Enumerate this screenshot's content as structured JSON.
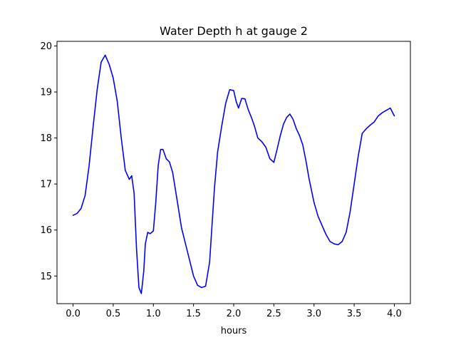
{
  "chart_data": {
    "type": "line",
    "title": "Water Depth h at gauge 2",
    "xlabel": "hours",
    "ylabel": "",
    "xlim": [
      -0.2,
      4.2
    ],
    "ylim": [
      14.4,
      20.1
    ],
    "x_ticks": [
      0.0,
      0.5,
      1.0,
      1.5,
      2.0,
      2.5,
      3.0,
      3.5,
      4.0
    ],
    "x_tick_labels": [
      "0.0",
      "0.5",
      "1.0",
      "1.5",
      "2.0",
      "2.5",
      "3.0",
      "3.5",
      "4.0"
    ],
    "y_ticks": [
      15,
      16,
      17,
      18,
      19,
      20
    ],
    "y_tick_labels": [
      "15",
      "16",
      "17",
      "18",
      "19",
      "20"
    ],
    "grid": false,
    "legend": "none",
    "series": [
      {
        "color": "#0000ff",
        "x": [
          0.0,
          0.05,
          0.1,
          0.15,
          0.2,
          0.25,
          0.3,
          0.35,
          0.4,
          0.45,
          0.5,
          0.55,
          0.6,
          0.65,
          0.7,
          0.73,
          0.76,
          0.79,
          0.82,
          0.85,
          0.88,
          0.9,
          0.93,
          0.96,
          1.0,
          1.03,
          1.06,
          1.09,
          1.12,
          1.16,
          1.2,
          1.24,
          1.3,
          1.35,
          1.4,
          1.5,
          1.55,
          1.6,
          1.65,
          1.7,
          1.73,
          1.76,
          1.8,
          1.85,
          1.9,
          1.95,
          2.0,
          2.03,
          2.06,
          2.1,
          2.14,
          2.18,
          2.22,
          2.26,
          2.3,
          2.35,
          2.4,
          2.45,
          2.5,
          2.54,
          2.58,
          2.62,
          2.66,
          2.7,
          2.74,
          2.78,
          2.82,
          2.86,
          2.9,
          2.94,
          3.0,
          3.05,
          3.1,
          3.15,
          3.2,
          3.25,
          3.3,
          3.35,
          3.4,
          3.45,
          3.5,
          3.55,
          3.6,
          3.65,
          3.7,
          3.75,
          3.8,
          3.85,
          3.9,
          3.95,
          4.0
        ],
        "values": [
          16.32,
          16.36,
          16.47,
          16.75,
          17.4,
          18.25,
          19.05,
          19.65,
          19.8,
          19.6,
          19.3,
          18.8,
          18.0,
          17.3,
          17.1,
          17.18,
          16.8,
          15.6,
          14.75,
          14.62,
          15.1,
          15.7,
          15.95,
          15.92,
          15.98,
          16.6,
          17.4,
          17.75,
          17.75,
          17.55,
          17.48,
          17.25,
          16.6,
          16.05,
          15.7,
          15.0,
          14.8,
          14.75,
          14.78,
          15.3,
          16.1,
          16.9,
          17.7,
          18.25,
          18.75,
          19.05,
          19.03,
          18.8,
          18.65,
          18.86,
          18.85,
          18.62,
          18.45,
          18.25,
          18.0,
          17.92,
          17.8,
          17.55,
          17.47,
          17.75,
          18.05,
          18.3,
          18.45,
          18.52,
          18.4,
          18.2,
          18.05,
          17.85,
          17.5,
          17.1,
          16.6,
          16.3,
          16.1,
          15.9,
          15.75,
          15.7,
          15.68,
          15.75,
          15.95,
          16.4,
          17.0,
          17.6,
          18.1,
          18.2,
          18.28,
          18.35,
          18.48,
          18.55,
          18.6,
          18.65,
          18.48
        ]
      }
    ]
  }
}
